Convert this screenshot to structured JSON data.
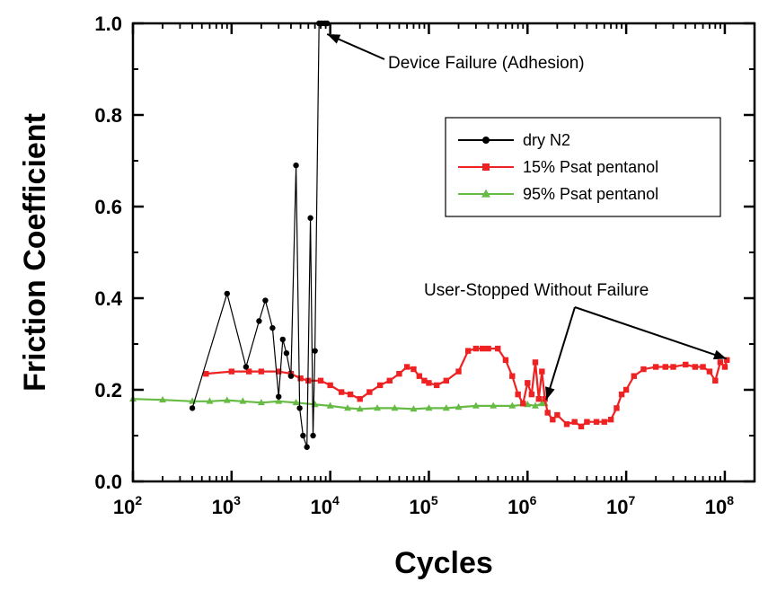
{
  "chart_data": {
    "type": "line",
    "xlabel": "Cycles",
    "ylabel": "Friction Coefficient",
    "x_scale": "log",
    "xlim": [
      100,
      200000000
    ],
    "ylim": [
      0.0,
      1.0
    ],
    "x_ticks": [
      {
        "base": "10",
        "exp": "2",
        "value": 100
      },
      {
        "base": "10",
        "exp": "3",
        "value": 1000
      },
      {
        "base": "10",
        "exp": "4",
        "value": 10000
      },
      {
        "base": "10",
        "exp": "5",
        "value": 100000
      },
      {
        "base": "10",
        "exp": "6",
        "value": 1000000
      },
      {
        "base": "10",
        "exp": "7",
        "value": 10000000
      },
      {
        "base": "10",
        "exp": "8",
        "value": 100000000
      }
    ],
    "y_ticks": [
      {
        "label": "0.0",
        "value": 0.0
      },
      {
        "label": "0.2",
        "value": 0.2
      },
      {
        "label": "0.4",
        "value": 0.4
      },
      {
        "label": "0.6",
        "value": 0.6
      },
      {
        "label": "0.8",
        "value": 0.8
      },
      {
        "label": "1.0",
        "value": 1.0
      }
    ],
    "legend_position": "top-right",
    "series": [
      {
        "name": "dry N2",
        "color": "#000000",
        "marker": "circle",
        "x": [
          400,
          900,
          1400,
          1900,
          2200,
          2600,
          3000,
          3300,
          3600,
          4000,
          4500,
          4900,
          5300,
          5800,
          6300,
          6700,
          7000,
          7700,
          8200,
          8800,
          9300
        ],
        "y": [
          0.16,
          0.41,
          0.25,
          0.35,
          0.395,
          0.335,
          0.185,
          0.31,
          0.28,
          0.23,
          0.69,
          0.16,
          0.1,
          0.075,
          0.575,
          0.1,
          0.285,
          1.0,
          1.0,
          1.0,
          1.0
        ]
      },
      {
        "name": "15% Psat pentanol",
        "color": "#ee2222",
        "marker": "square",
        "x": [
          550,
          1000,
          1500,
          2000,
          3000,
          4000,
          5000,
          6000,
          8000,
          10000,
          13000,
          16000,
          20000,
          25000,
          32000,
          40000,
          50000,
          60000,
          70000,
          80000,
          90000,
          100000,
          120000,
          150000,
          200000,
          250000,
          300000,
          350000,
          400000,
          500000,
          600000,
          700000,
          800000,
          900000,
          1000000,
          1100000,
          1200000,
          1300000,
          1400000,
          1500000,
          1600000,
          1800000,
          2000000,
          2500000,
          3000000,
          3500000,
          4000000,
          5000000,
          6000000,
          7000000,
          8000000,
          9000000,
          10000000,
          12000000,
          15000000,
          20000000,
          25000000,
          30000000,
          40000000,
          50000000,
          60000000,
          70000000,
          80000000,
          90000000,
          100000000,
          105000000
        ],
        "y": [
          0.235,
          0.24,
          0.24,
          0.24,
          0.24,
          0.235,
          0.225,
          0.22,
          0.22,
          0.21,
          0.195,
          0.19,
          0.18,
          0.195,
          0.21,
          0.22,
          0.235,
          0.25,
          0.245,
          0.23,
          0.22,
          0.215,
          0.21,
          0.22,
          0.24,
          0.285,
          0.29,
          0.29,
          0.29,
          0.29,
          0.265,
          0.23,
          0.19,
          0.17,
          0.215,
          0.19,
          0.26,
          0.18,
          0.24,
          0.18,
          0.15,
          0.135,
          0.145,
          0.125,
          0.13,
          0.12,
          0.13,
          0.13,
          0.13,
          0.135,
          0.16,
          0.19,
          0.2,
          0.23,
          0.245,
          0.25,
          0.25,
          0.25,
          0.255,
          0.25,
          0.25,
          0.24,
          0.22,
          0.26,
          0.25,
          0.265
        ]
      },
      {
        "name": "95% Psat pentanol",
        "color": "#66bb44",
        "marker": "triangle",
        "x": [
          100,
          200,
          400,
          600,
          900,
          1300,
          2000,
          3000,
          4500,
          7000,
          10000,
          15000,
          20000,
          30000,
          45000,
          70000,
          100000,
          150000,
          200000,
          300000,
          450000,
          700000,
          1000000,
          1200000,
          1400000,
          1500000
        ],
        "y": [
          0.18,
          0.178,
          0.175,
          0.175,
          0.177,
          0.175,
          0.172,
          0.175,
          0.172,
          0.168,
          0.165,
          0.16,
          0.158,
          0.16,
          0.16,
          0.158,
          0.16,
          0.16,
          0.162,
          0.165,
          0.165,
          0.165,
          0.168,
          0.165,
          0.17,
          0.17
        ]
      }
    ],
    "annotations": [
      {
        "text": "Device Failure (Adhesion)"
      },
      {
        "text": "User-Stopped Without Failure"
      }
    ]
  }
}
